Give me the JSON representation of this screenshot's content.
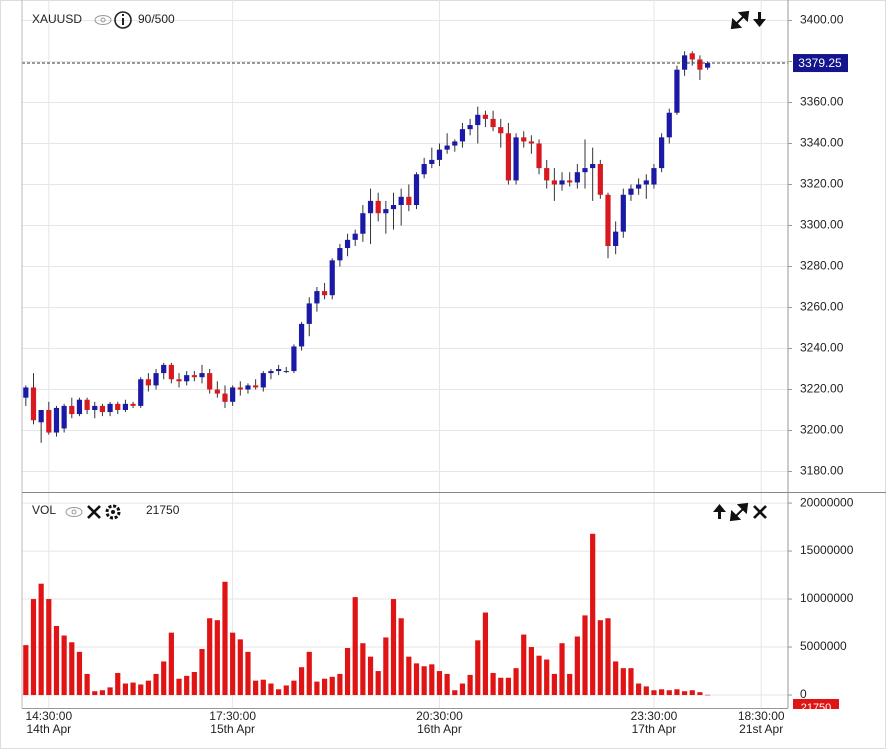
{
  "chart_data": [
    {
      "type": "candlestick",
      "title": "XAUUSD",
      "counter": "90/500",
      "up_color": "#1a1aa6",
      "down_color": "#d71920",
      "open": [
        3216,
        3221,
        3204,
        3210,
        3199,
        3201,
        3212,
        3208,
        3215,
        3210,
        3212,
        3209,
        3213,
        3210,
        3213,
        3212,
        3225,
        3222,
        3228,
        3232,
        3225,
        3224,
        3227,
        3226,
        3228,
        3220,
        3218,
        3214,
        3221,
        3220,
        3222,
        3221,
        3228,
        3229,
        3229,
        3229,
        3241,
        3252,
        3262,
        3268,
        3266,
        3283,
        3289,
        3293,
        3296,
        3306,
        3312,
        3306,
        3308,
        3310,
        3314,
        3310,
        3325,
        3330,
        3332,
        3337,
        3339,
        3341,
        3347,
        3349,
        3354,
        3352,
        3348,
        3345,
        3322,
        3343,
        3341,
        3340,
        3328,
        3322,
        3320,
        3322,
        3321,
        3326,
        3328,
        3330,
        3315,
        3290,
        3297,
        3315,
        3318,
        3320,
        3320,
        3328,
        3343,
        3355,
        3376,
        3384,
        3381,
        3377,
        null,
        null,
        null,
        null,
        null,
        null,
        null,
        null,
        null,
        null
      ],
      "high": [
        3222,
        3228,
        3210,
        3214,
        3212,
        3213,
        3216,
        3216,
        3216,
        3214,
        3213,
        3214,
        3214,
        3215,
        3214,
        3226,
        3228,
        3230,
        3233,
        3233,
        3228,
        3229,
        3229,
        3232,
        3230,
        3224,
        3222,
        3222,
        3224,
        3223,
        3225,
        3229,
        3230,
        3232,
        3231,
        3242,
        3253,
        3265,
        3270,
        3272,
        3284,
        3291,
        3296,
        3298,
        3310,
        3318,
        3316,
        3312,
        3316,
        3318,
        3320,
        3326,
        3333,
        3338,
        3340,
        3345,
        3342,
        3350,
        3352,
        3358,
        3356,
        3356,
        3352,
        3350,
        3345,
        3346,
        3344,
        3342,
        3332,
        3328,
        3326,
        3326,
        3330,
        3342,
        3338,
        3332,
        3316,
        3302,
        3318,
        3320,
        3323,
        3325,
        3330,
        3345,
        3357,
        3378,
        3385,
        3385,
        3383,
        3380,
        null,
        null,
        null,
        null,
        null,
        null,
        null,
        null,
        null,
        null
      ],
      "low": [
        3212,
        3203,
        3194,
        3198,
        3197,
        3199,
        3206,
        3207,
        3208,
        3206,
        3207,
        3207,
        3208,
        3209,
        3211,
        3211,
        3219,
        3220,
        3225,
        3223,
        3221,
        3222,
        3224,
        3223,
        3218,
        3216,
        3211,
        3212,
        3217,
        3218,
        3220,
        3219,
        3225,
        3227,
        3228,
        3228,
        3239,
        3246,
        3258,
        3264,
        3264,
        3280,
        3285,
        3290,
        3292,
        3291,
        3302,
        3296,
        3298,
        3300,
        3307,
        3308,
        3323,
        3328,
        3329,
        3335,
        3336,
        3338,
        3344,
        3340,
        3348,
        3346,
        3338,
        3320,
        3320,
        3338,
        3335,
        3325,
        3318,
        3312,
        3317,
        3319,
        3318,
        3318,
        3312,
        3313,
        3284,
        3286,
        3294,
        3312,
        3315,
        3313,
        3318,
        3326,
        3340,
        3354,
        3373,
        3378,
        3371,
        3376,
        null,
        null,
        null,
        null,
        null,
        null,
        null,
        null,
        null,
        null
      ],
      "close": [
        3221,
        3205,
        3210,
        3199,
        3211,
        3212,
        3208,
        3215,
        3210,
        3212,
        3209,
        3213,
        3210,
        3213,
        3212,
        3225,
        3222,
        3228,
        3232,
        3225,
        3224,
        3227,
        3226,
        3228,
        3220,
        3218,
        3214,
        3221,
        3220,
        3222,
        3221,
        3228,
        3229,
        3230,
        3229,
        3241,
        3252,
        3262,
        3268,
        3266,
        3283,
        3289,
        3293,
        3296,
        3306,
        3312,
        3306,
        3308,
        3310,
        3314,
        3310,
        3325,
        3330,
        3332,
        3337,
        3339,
        3341,
        3347,
        3349,
        3354,
        3352,
        3348,
        3345,
        3322,
        3343,
        3341,
        3340,
        3328,
        3322,
        3320,
        3322,
        3321,
        3326,
        3328,
        3330,
        3315,
        3290,
        3297,
        3315,
        3318,
        3320,
        3322,
        3328,
        3343,
        3355,
        3376,
        3383,
        3381,
        3376,
        3379.25,
        null,
        null,
        null,
        null,
        null,
        null,
        null,
        null,
        null,
        null
      ],
      "last_price": 3379.25,
      "ylim": [
        3170,
        3410
      ],
      "yticks": [
        {
          "value": 3180,
          "label": "3180.00"
        },
        {
          "value": 3200,
          "label": "3200.00"
        },
        {
          "value": 3220,
          "label": "3220.00"
        },
        {
          "value": 3240,
          "label": "3240.00"
        },
        {
          "value": 3260,
          "label": "3260.00"
        },
        {
          "value": 3280,
          "label": "3280.00"
        },
        {
          "value": 3300,
          "label": "3300.00"
        },
        {
          "value": 3320,
          "label": "3320.00"
        },
        {
          "value": 3340,
          "label": "3340.00"
        },
        {
          "value": 3360,
          "label": "3360.00"
        },
        {
          "value": 3380,
          "label": "3380.00"
        },
        {
          "value": 3400,
          "label": "3400.00"
        }
      ],
      "grid": true
    },
    {
      "type": "bar",
      "title": "VOL",
      "last_value": 21750,
      "color": "#e01414",
      "categories": [
        null,
        null,
        null,
        "14:30:00",
        null,
        null,
        null,
        null,
        null,
        null,
        null,
        null,
        null,
        null,
        null,
        null,
        null,
        null,
        null,
        null,
        null,
        null,
        null,
        null,
        null,
        null,
        null,
        "17:30:00",
        null,
        null,
        null,
        null,
        null,
        null,
        null,
        null,
        null,
        null,
        null,
        null,
        null,
        null,
        null,
        null,
        null,
        null,
        null,
        null,
        null,
        null,
        null,
        null,
        null,
        null,
        "20:30:00",
        null,
        null,
        null,
        null,
        null,
        null,
        null,
        null,
        null,
        null,
        null,
        null,
        null,
        null,
        null,
        null,
        null,
        null,
        null,
        null,
        null,
        null,
        null,
        null,
        null,
        null,
        null,
        "23:30:00",
        null,
        null,
        null,
        null,
        null,
        null,
        null,
        null,
        null,
        null,
        null,
        null,
        null,
        "18:30:00",
        null,
        null,
        null
      ],
      "dates": [
        null,
        null,
        null,
        "14th Apr",
        null,
        null,
        null,
        null,
        null,
        null,
        null,
        null,
        null,
        null,
        null,
        null,
        null,
        null,
        null,
        null,
        null,
        null,
        null,
        null,
        null,
        null,
        null,
        "15th Apr",
        null,
        null,
        null,
        null,
        null,
        null,
        null,
        null,
        null,
        null,
        null,
        null,
        null,
        null,
        null,
        null,
        null,
        null,
        null,
        null,
        null,
        null,
        null,
        null,
        null,
        null,
        "16th Apr",
        null,
        null,
        null,
        null,
        null,
        null,
        null,
        null,
        null,
        null,
        null,
        null,
        null,
        null,
        null,
        null,
        null,
        null,
        null,
        null,
        null,
        null,
        null,
        null,
        null,
        null,
        null,
        "17th Apr",
        null,
        null,
        null,
        null,
        null,
        null,
        null,
        null,
        null,
        null,
        null,
        null,
        null,
        "21st Apr",
        null,
        null,
        null
      ],
      "values": [
        5200000,
        10000000,
        11600000,
        10000000,
        7200000,
        6200000,
        5500000,
        4500000,
        2200000,
        400000,
        500000,
        800000,
        2300000,
        1200000,
        1300000,
        1100000,
        1500000,
        2200000,
        3500000,
        6500000,
        1700000,
        2000000,
        2400000,
        4800000,
        8000000,
        7800000,
        11800000,
        6500000,
        5800000,
        4500000,
        1500000,
        1600000,
        1200000,
        600000,
        1000000,
        1500000,
        2900000,
        4500000,
        1400000,
        1700000,
        1900000,
        2200000,
        4900000,
        10200000,
        5400000,
        4000000,
        2500000,
        6000000,
        10000000,
        8000000,
        4000000,
        3300000,
        3000000,
        3200000,
        2500000,
        2200000,
        500000,
        1200000,
        2100000,
        5700000,
        8600000,
        2300000,
        1800000,
        1800000,
        2800000,
        6300000,
        5000000,
        4100000,
        3700000,
        2200000,
        5400000,
        2200000,
        6100000,
        8300000,
        16800000,
        7800000,
        8000000,
        3500000,
        2800000,
        2800000,
        1200000,
        900000,
        500000,
        600000,
        500000,
        600000,
        400000,
        500000,
        300000,
        21750,
        null,
        null,
        null,
        null,
        null,
        null,
        null,
        null,
        null,
        null
      ],
      "ylim": [
        -1350000,
        21050000
      ],
      "yticks": [
        0,
        5000000,
        10000000,
        15000000,
        20000000
      ],
      "grid": true
    }
  ]
}
